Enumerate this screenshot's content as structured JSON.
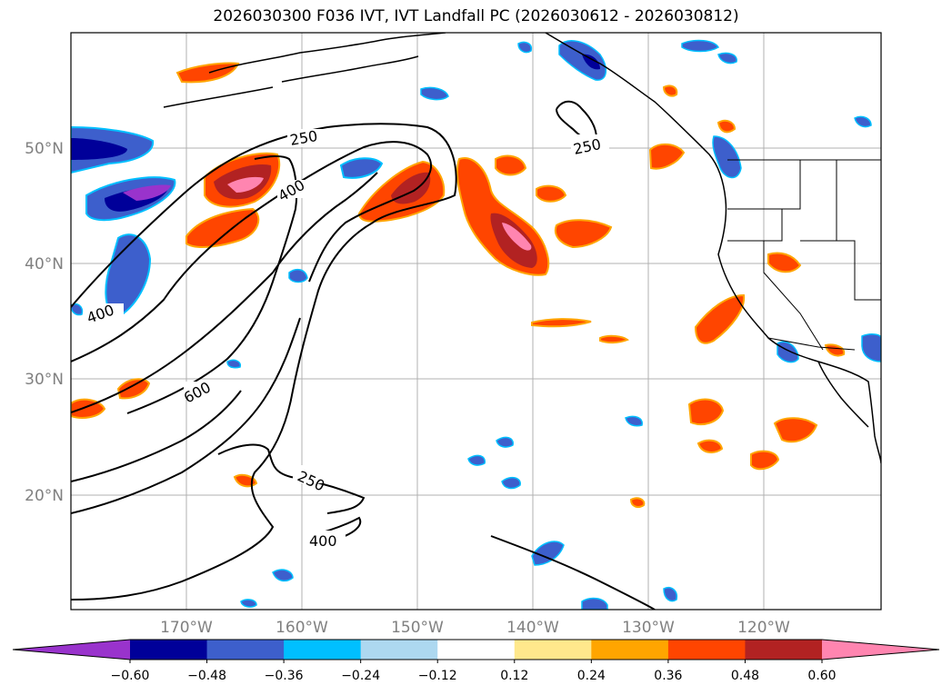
{
  "title": "2026030300 F036 IVT, IVT Landfall PC (2026030612 - 2026030812)",
  "lat_labels": [
    "50°N",
    "40°N",
    "30°N",
    "20°N"
  ],
  "lon_labels": [
    "170°W",
    "160°W",
    "150°W",
    "140°W",
    "130°W",
    "120°W"
  ],
  "contour_labels": [
    "250",
    "400",
    "250",
    "400",
    "600",
    "250",
    "400"
  ],
  "colorbar": {
    "ticks": [
      "−0.60",
      "−0.48",
      "−0.36",
      "−0.24",
      "−0.12",
      "0.12",
      "0.24",
      "0.36",
      "0.48",
      "0.60"
    ],
    "colors": [
      "#9933cc",
      "#000099",
      "#3d5fcc",
      "#00bfff",
      "#add8f0",
      "#ffffff",
      "#ffe88c",
      "#ffa500",
      "#ff4500",
      "#b22222",
      "#ff85b0"
    ]
  }
}
